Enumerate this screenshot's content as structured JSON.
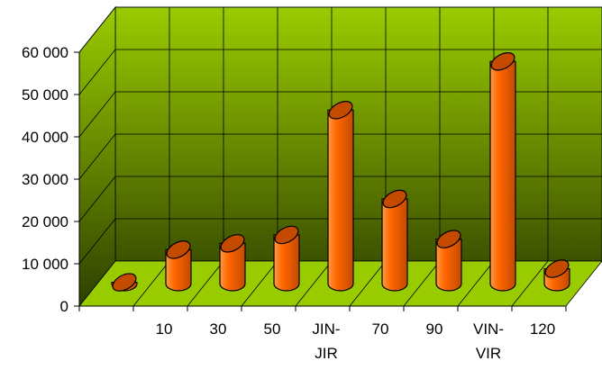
{
  "chart_data": {
    "type": "bar",
    "style": "3d-cylinder",
    "categories": [
      "",
      "10",
      "30",
      "50",
      "JIN-JIR",
      "70",
      "90",
      "VIN-VIR",
      "120"
    ],
    "category_label_lines": [
      [
        ""
      ],
      [
        "10"
      ],
      [
        "30"
      ],
      [
        "50"
      ],
      [
        "JIN-",
        "JIR"
      ],
      [
        "70"
      ],
      [
        "90"
      ],
      [
        "VIN-",
        "VIR"
      ],
      [
        "120"
      ]
    ],
    "values": [
      300,
      8000,
      9500,
      11500,
      41000,
      20000,
      10500,
      52500,
      3500
    ],
    "y_ticks": [
      "0",
      "10 000",
      "20 000",
      "30 000",
      "40 000",
      "50 000",
      "60 000"
    ],
    "ylim": [
      0,
      60000
    ],
    "title": "",
    "xlabel": "",
    "ylabel": "",
    "grid": true,
    "legend": "none",
    "colors": {
      "bar_fill": "#ff6600",
      "bar_light": "#ff9a40",
      "bar_dark": "#c44a00",
      "back_wall_top": "#99cc00",
      "back_wall_bottom": "#3d5200",
      "side_wall_top": "#99cc00",
      "side_wall_bottom": "#2e4000",
      "floor": "#99cc00",
      "grid_line": "#000000"
    }
  }
}
